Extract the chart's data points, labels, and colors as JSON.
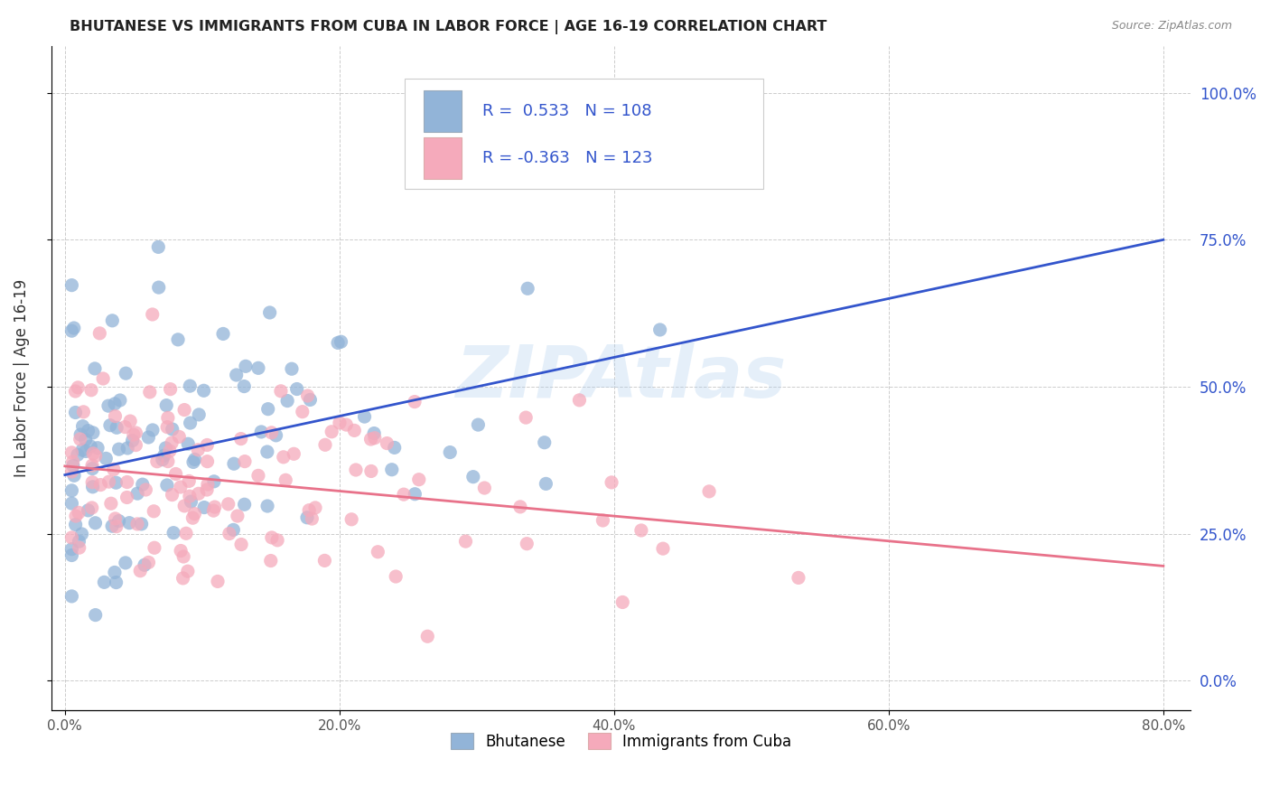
{
  "title": "BHUTANESE VS IMMIGRANTS FROM CUBA IN LABOR FORCE | AGE 16-19 CORRELATION CHART",
  "source": "Source: ZipAtlas.com",
  "ylabel": "In Labor Force | Age 16-19",
  "xlabel_ticks": [
    "0.0%",
    "20.0%",
    "40.0%",
    "60.0%",
    "80.0%"
  ],
  "xlabel_vals": [
    0.0,
    0.2,
    0.4,
    0.6,
    0.8
  ],
  "ylabel_ticks": [
    "0.0%",
    "25.0%",
    "50.0%",
    "75.0%",
    "100.0%"
  ],
  "ylabel_vals": [
    0.0,
    0.25,
    0.5,
    0.75,
    1.0
  ],
  "xlim": [
    -0.01,
    0.82
  ],
  "ylim": [
    -0.05,
    1.08
  ],
  "watermark": "ZIPAtlas",
  "blue_R": 0.533,
  "blue_N": 108,
  "pink_R": -0.363,
  "pink_N": 123,
  "blue_color": "#92b4d8",
  "pink_color": "#f5aabb",
  "blue_line_color": "#3355cc",
  "pink_line_color": "#e8728a",
  "legend_label_blue": "Bhutanese",
  "legend_label_pink": "Immigrants from Cuba",
  "blue_line_x0": 0.0,
  "blue_line_y0": 0.35,
  "blue_line_x1": 0.8,
  "blue_line_y1": 0.75,
  "pink_line_x0": 0.0,
  "pink_line_y0": 0.365,
  "pink_line_x1": 0.8,
  "pink_line_y1": 0.195
}
